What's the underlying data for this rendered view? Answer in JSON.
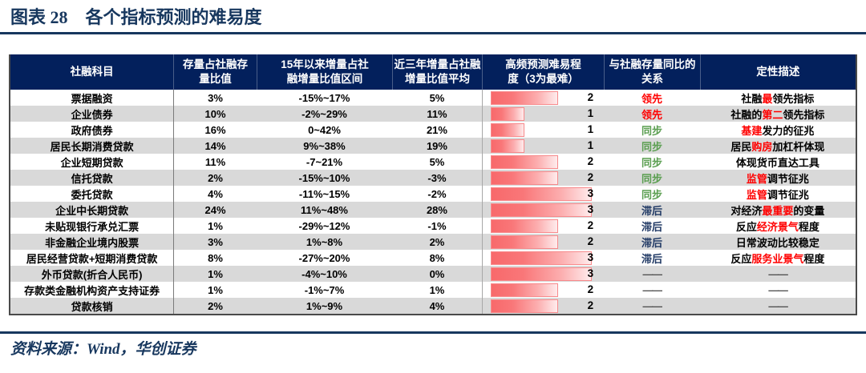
{
  "figure": {
    "label": "图表 28",
    "title": "各个指标预测的难易度"
  },
  "source_note": "资料来源：Wind，华创证券",
  "colors": {
    "accent_navy": "#17375e",
    "header_bg": "#03205c",
    "row_alt_gray": "#d9d9d9",
    "highlight_red": "#ff0000",
    "sync_green": "#5a9e50",
    "lag_blue": "#1f3864",
    "bar_red": "#f8696b",
    "dash_gray": "#4d4d4d"
  },
  "chart_data": {
    "type": "table",
    "title": "各个指标预测的难易度",
    "difficulty_max": 3,
    "columns": [
      {
        "key": "category",
        "label": "社融科目",
        "lines": [
          "社融科目"
        ]
      },
      {
        "key": "stock_share",
        "label": "存量占社融存量比值",
        "lines": [
          "存量占社融存",
          "量比值"
        ]
      },
      {
        "key": "range_2015",
        "label": "15年以来增量占社融增量比值区间",
        "lines": [
          "15年以来增量占社",
          "融增量比值区间"
        ]
      },
      {
        "key": "avg_3y",
        "label": "近三年增量占社融增量比值平均",
        "lines": [
          "近三年增量占社融",
          "增量比值平均"
        ]
      },
      {
        "key": "difficulty",
        "label": "高频预测难易程度（3为最难）",
        "lines": [
          "高频预测难易程",
          "度（3为最难）"
        ]
      },
      {
        "key": "relation",
        "label": "与社融存量同比的关系",
        "lines": [
          "与社融存量同比的",
          "关系"
        ]
      },
      {
        "key": "description",
        "label": "定性描述",
        "lines": [
          "定性描述"
        ]
      }
    ],
    "rows": [
      {
        "category": "票据融资",
        "stock_share": "3%",
        "range_2015": "-15%~17%",
        "avg_3y": "5%",
        "difficulty": 2,
        "relation": "领先",
        "relation_type": "lead",
        "description": [
          [
            "社融",
            false
          ],
          [
            "最",
            true
          ],
          [
            "领先指标",
            false
          ]
        ]
      },
      {
        "category": "企业债券",
        "stock_share": "10%",
        "range_2015": "-2%~29%",
        "avg_3y": "11%",
        "difficulty": 1,
        "relation": "领先",
        "relation_type": "lead",
        "description": [
          [
            "社融的",
            false
          ],
          [
            "第二",
            true
          ],
          [
            "领先指标",
            false
          ]
        ]
      },
      {
        "category": "政府债券",
        "stock_share": "16%",
        "range_2015": "0~42%",
        "avg_3y": "21%",
        "difficulty": 1,
        "relation": "同步",
        "relation_type": "sync",
        "description": [
          [
            "基建",
            true
          ],
          [
            "发力的征兆",
            false
          ]
        ]
      },
      {
        "category": "居民长期消费贷款",
        "stock_share": "14%",
        "range_2015": "9%~38%",
        "avg_3y": "19%",
        "difficulty": 1,
        "relation": "同步",
        "relation_type": "sync",
        "description": [
          [
            "居民",
            false
          ],
          [
            "购房",
            true
          ],
          [
            "加杠杆体现",
            false
          ]
        ]
      },
      {
        "category": "企业短期贷款",
        "stock_share": "11%",
        "range_2015": "-7~21%",
        "avg_3y": "5%",
        "difficulty": 2,
        "relation": "同步",
        "relation_type": "sync",
        "description": [
          [
            "体现货币直达工具",
            false
          ]
        ]
      },
      {
        "category": "信托贷款",
        "stock_share": "2%",
        "range_2015": "-15%~10%",
        "avg_3y": "-3%",
        "difficulty": 2,
        "relation": "同步",
        "relation_type": "sync",
        "description": [
          [
            "监管",
            true
          ],
          [
            "调节征兆",
            false
          ]
        ]
      },
      {
        "category": "委托贷款",
        "stock_share": "4%",
        "range_2015": "-11%~15%",
        "avg_3y": "-2%",
        "difficulty": 3,
        "relation": "同步",
        "relation_type": "sync",
        "description": [
          [
            "监管",
            true
          ],
          [
            "调节征兆",
            false
          ]
        ]
      },
      {
        "category": "企业中长期贷款",
        "stock_share": "24%",
        "range_2015": "11%~48%",
        "avg_3y": "28%",
        "difficulty": 3,
        "relation": "滞后",
        "relation_type": "lag",
        "description": [
          [
            "对经济",
            false
          ],
          [
            "最重要",
            true
          ],
          [
            "的变量",
            false
          ]
        ]
      },
      {
        "category": "未贴现银行承兑汇票",
        "stock_share": "1%",
        "range_2015": "-29%~12%",
        "avg_3y": "-1%",
        "difficulty": 2,
        "relation": "滞后",
        "relation_type": "lag",
        "description": [
          [
            "反应",
            false
          ],
          [
            "经济景气",
            true
          ],
          [
            "程度",
            false
          ]
        ]
      },
      {
        "category": "非金融企业境内股票",
        "stock_share": "3%",
        "range_2015": "1%~8%",
        "avg_3y": "2%",
        "difficulty": 2,
        "relation": "滞后",
        "relation_type": "lag",
        "description": [
          [
            "日常波动比较稳定",
            false
          ]
        ]
      },
      {
        "category": "居民经营贷款+短期消费贷款",
        "stock_share": "8%",
        "range_2015": "-27%~20%",
        "avg_3y": "8%",
        "difficulty": 3,
        "relation": "滞后",
        "relation_type": "lag",
        "description": [
          [
            "反应",
            false
          ],
          [
            "服务业景气",
            true
          ],
          [
            "程度",
            false
          ]
        ]
      },
      {
        "category": "外币贷款(折合人民币)",
        "stock_share": "1%",
        "range_2015": "-4%~10%",
        "avg_3y": "0%",
        "difficulty": 3,
        "relation": "——",
        "relation_type": "none",
        "description": [
          [
            "——",
            false
          ]
        ]
      },
      {
        "category": "存款类金融机构资产支持证券",
        "stock_share": "1%",
        "range_2015": "-1%~7%",
        "avg_3y": "1%",
        "difficulty": 2,
        "relation": "——",
        "relation_type": "none",
        "description": [
          [
            "——",
            false
          ]
        ]
      },
      {
        "category": "贷款核销",
        "stock_share": "2%",
        "range_2015": "1%~9%",
        "avg_3y": "4%",
        "difficulty": 2,
        "relation": "——",
        "relation_type": "none",
        "description": [
          [
            "——",
            false
          ]
        ]
      }
    ]
  }
}
